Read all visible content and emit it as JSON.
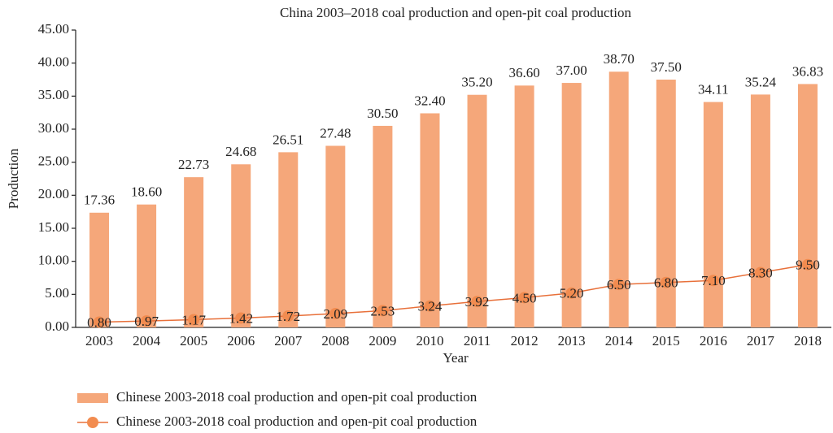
{
  "chart_data": {
    "type": "bar",
    "title": "China 2003–2018 coal production and open-pit coal production",
    "x_label": "Year",
    "y_label": "Production",
    "categories": [
      "2003",
      "2004",
      "2005",
      "2006",
      "2007",
      "2008",
      "2009",
      "2010",
      "2011",
      "2012",
      "2013",
      "2014",
      "2015",
      "2016",
      "2017",
      "2018"
    ],
    "series": [
      {
        "name": "Chinese 2003-2018 coal production and open-pit coal production",
        "type": "bar",
        "color": "#f5a77a",
        "values": [
          17.36,
          18.6,
          22.73,
          24.68,
          26.51,
          27.48,
          30.5,
          32.4,
          35.2,
          36.6,
          37,
          38.7,
          37.5,
          34.11,
          35.24,
          36.83
        ],
        "value_labels": [
          "17.36",
          "18.60",
          "22.73",
          "24.68",
          "26.51",
          "27.48",
          "30.50",
          "32.40",
          "35.20",
          "36.60",
          "37.00",
          "38.70",
          "37.50",
          "34.11",
          "35.24",
          "36.83"
        ]
      },
      {
        "name": "Chinese 2003-2018 coal production and open-pit coal production",
        "type": "line",
        "color": "#e8703a",
        "marker_color": "#f28c50",
        "values": [
          0.8,
          0.97,
          1.17,
          1.42,
          1.72,
          2.09,
          2.53,
          3.24,
          3.92,
          4.5,
          5.2,
          6.5,
          6.8,
          7.1,
          8.3,
          9.5
        ],
        "value_labels": [
          "0.80",
          "0.97",
          "1.17",
          "1.42",
          "1.72",
          "2.09",
          "2.53",
          "3.24",
          "3.92",
          "4.50",
          "5.20",
          "6.50",
          "6.80",
          "7.10",
          "8.30",
          "9.50"
        ]
      }
    ],
    "ylim": [
      0,
      45
    ],
    "yticks": [
      {
        "value": 0,
        "label": "0.00"
      },
      {
        "value": 5,
        "label": "5.00"
      },
      {
        "value": 10,
        "label": "10.00"
      },
      {
        "value": 15,
        "label": "15.00"
      },
      {
        "value": 20,
        "label": "20.00"
      },
      {
        "value": 25,
        "label": "25.00"
      },
      {
        "value": 30,
        "label": "30.00"
      },
      {
        "value": 35,
        "label": "35.00"
      },
      {
        "value": 40,
        "label": "40.00"
      },
      {
        "value": 45,
        "label": "45.00"
      }
    ],
    "legend": "bottom-left"
  }
}
